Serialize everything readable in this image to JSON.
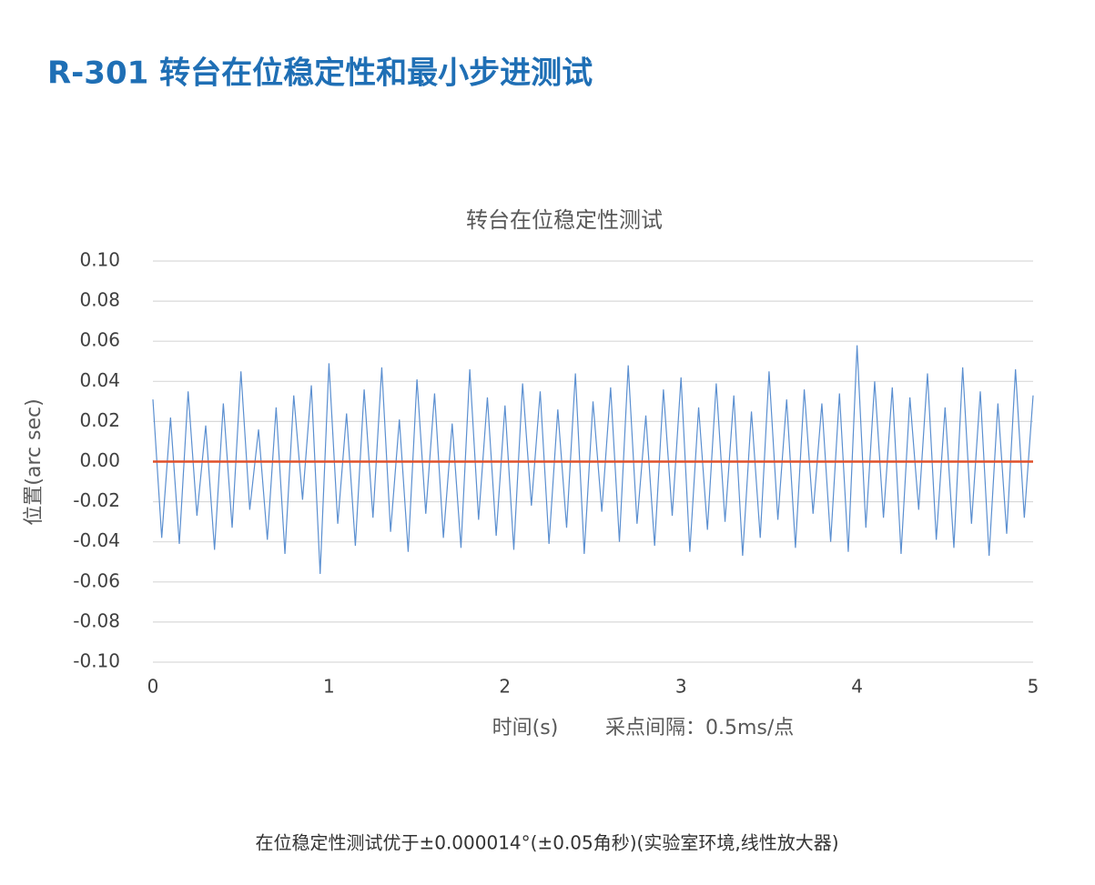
{
  "heading": "R-301 转台在位稳定性和最小步进测试",
  "caption": "在位稳定性测试优于±0.000014°(±0.05角秒)(实验室环境,线性放大器)",
  "chart_data": {
    "type": "line",
    "title": "转台在位稳定性测试",
    "ylabel": "位置(arc sec)",
    "xlabel": "时间(s)",
    "annotation": "采点间隔：0.5ms/点",
    "xlim": [
      0,
      5
    ],
    "xticks": [
      0,
      1,
      2,
      3,
      4,
      5
    ],
    "ylim": [
      -0.1,
      0.1
    ],
    "yticks": [
      {
        "value": 0.1,
        "label": "0.10"
      },
      {
        "value": 0.08,
        "label": "0.08"
      },
      {
        "value": 0.06,
        "label": "0.06"
      },
      {
        "value": 0.04,
        "label": "0.04"
      },
      {
        "value": 0.02,
        "label": "0.02"
      },
      {
        "value": 0,
        "label": "0.00"
      },
      {
        "value": -0.02,
        "label": "-0.02"
      },
      {
        "value": -0.04,
        "label": "-0.04"
      },
      {
        "value": -0.06,
        "label": "-0.06"
      },
      {
        "value": -0.08,
        "label": "-0.08"
      },
      {
        "value": -0.1,
        "label": "-0.10"
      }
    ],
    "grid": true,
    "series": [
      {
        "color": "#5b8fd0",
        "x": [
          0,
          0.05,
          0.1,
          0.15,
          0.2,
          0.25,
          0.3,
          0.35,
          0.4,
          0.45,
          0.5,
          0.55,
          0.6,
          0.65,
          0.7,
          0.75,
          0.8,
          0.85,
          0.9,
          0.95,
          1,
          1.05,
          1.1,
          1.15,
          1.2,
          1.25,
          1.3,
          1.35,
          1.4,
          1.45,
          1.5,
          1.55,
          1.6,
          1.65,
          1.7,
          1.75,
          1.8,
          1.85,
          1.9,
          1.95,
          2,
          2.05,
          2.1,
          2.15,
          2.2,
          2.25,
          2.3,
          2.35,
          2.4,
          2.45,
          2.5,
          2.55,
          2.6,
          2.65,
          2.7,
          2.75,
          2.8,
          2.85,
          2.9,
          2.95,
          3,
          3.05,
          3.1,
          3.15,
          3.2,
          3.25,
          3.3,
          3.35,
          3.4,
          3.45,
          3.5,
          3.55,
          3.6,
          3.65,
          3.7,
          3.75,
          3.8,
          3.85,
          3.9,
          3.95,
          4,
          4.05,
          4.1,
          4.15,
          4.2,
          4.25,
          4.3,
          4.35,
          4.4,
          4.45,
          4.5,
          4.55,
          4.6,
          4.65,
          4.7,
          4.75,
          4.8,
          4.85,
          4.9,
          4.95,
          5
        ],
        "values": [
          0.031,
          -0.038,
          0.022,
          -0.041,
          0.035,
          -0.027,
          0.018,
          -0.044,
          0.029,
          -0.033,
          0.045,
          -0.024,
          0.016,
          -0.039,
          0.027,
          -0.046,
          0.033,
          -0.019,
          0.038,
          -0.056,
          0.049,
          -0.031,
          0.024,
          -0.042,
          0.036,
          -0.028,
          0.047,
          -0.035,
          0.021,
          -0.045,
          0.041,
          -0.026,
          0.034,
          -0.038,
          0.019,
          -0.043,
          0.046,
          -0.029,
          0.032,
          -0.037,
          0.028,
          -0.044,
          0.039,
          -0.022,
          0.035,
          -0.041,
          0.026,
          -0.033,
          0.044,
          -0.046,
          0.03,
          -0.025,
          0.037,
          -0.04,
          0.048,
          -0.031,
          0.023,
          -0.042,
          0.036,
          -0.027,
          0.042,
          -0.045,
          0.027,
          -0.034,
          0.039,
          -0.03,
          0.033,
          -0.047,
          0.025,
          -0.038,
          0.045,
          -0.029,
          0.031,
          -0.043,
          0.036,
          -0.026,
          0.029,
          -0.04,
          0.034,
          -0.045,
          0.058,
          -0.033,
          0.04,
          -0.028,
          0.037,
          -0.046,
          0.032,
          -0.024,
          0.044,
          -0.039,
          0.027,
          -0.043,
          0.047,
          -0.031,
          0.035,
          -0.047,
          0.029,
          -0.036,
          0.046,
          -0.028,
          0.033
        ]
      },
      {
        "color": "#e0502a",
        "x": [
          0,
          5
        ],
        "values": [
          0,
          0
        ]
      }
    ]
  }
}
